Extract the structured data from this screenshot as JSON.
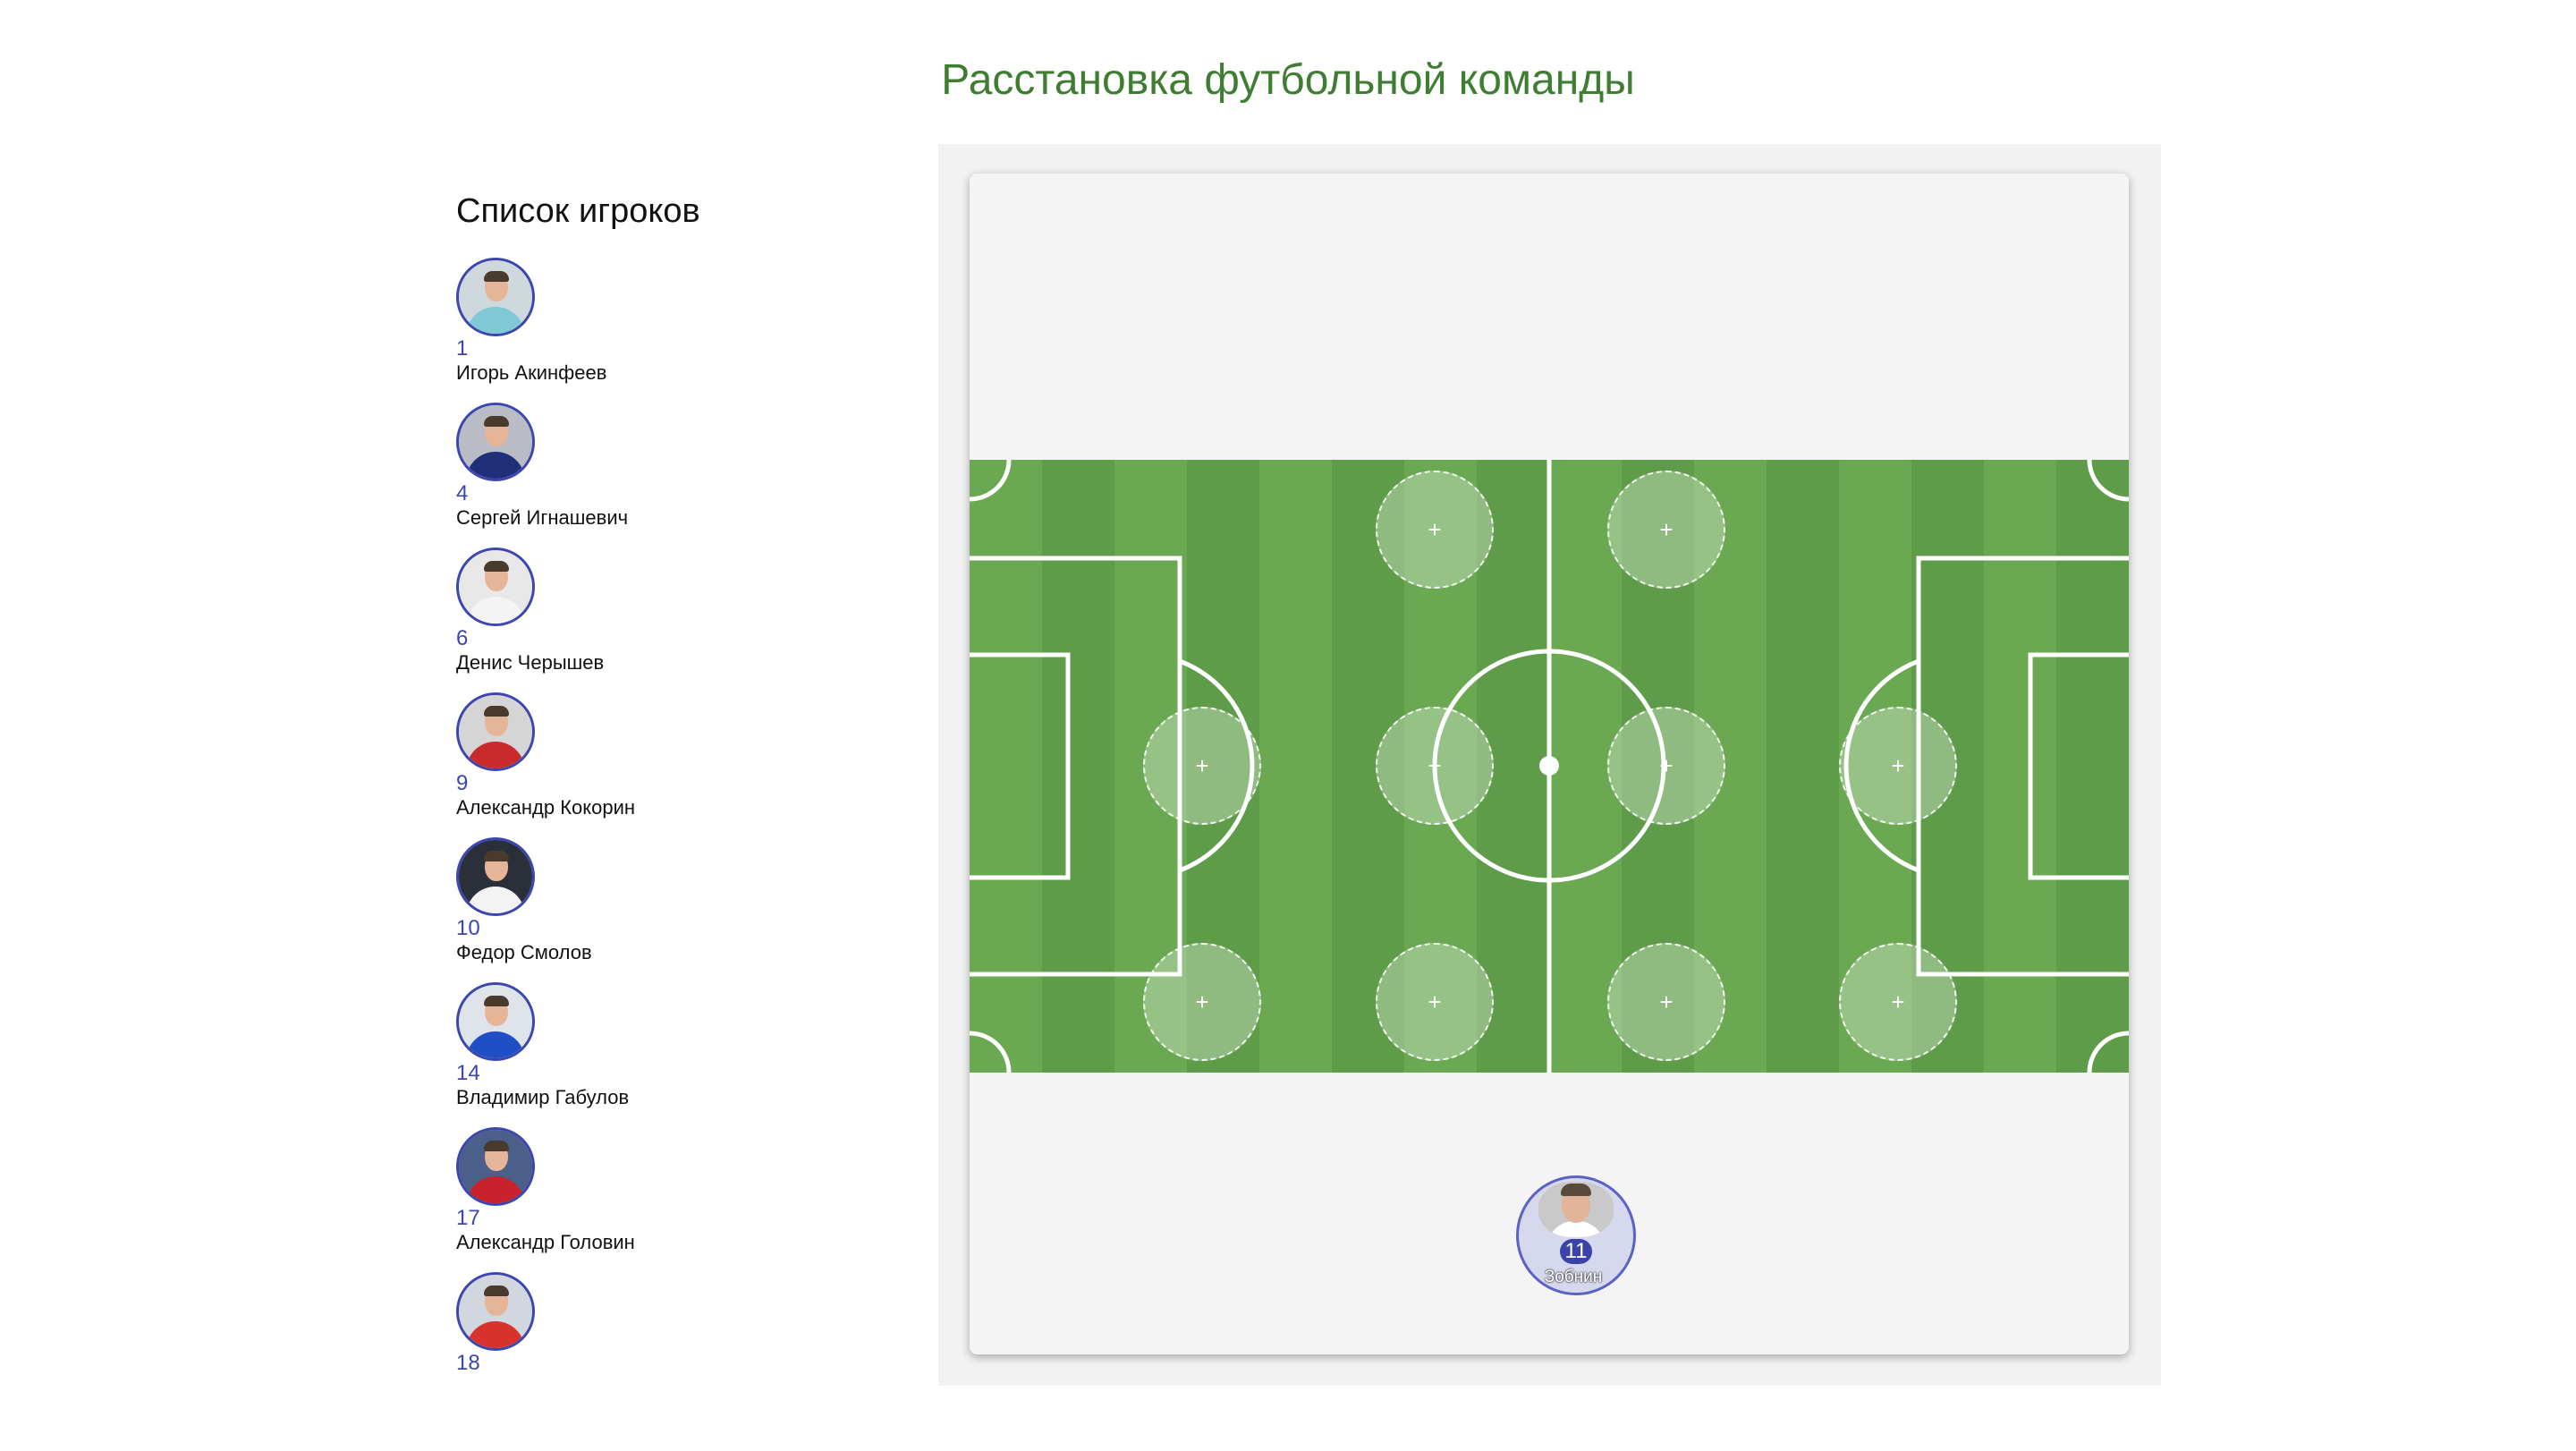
{
  "title": "Расстановка футбольной команды",
  "roster": {
    "heading": "Список игроков",
    "players": [
      {
        "number": "1",
        "name": "Игорь Акинфеев",
        "kit": "#7fc8d6",
        "bg": "#cfd8dc"
      },
      {
        "number": "4",
        "name": "Сергей Игнашевич",
        "kit": "#1f2f7a",
        "bg": "#b9bcc4"
      },
      {
        "number": "6",
        "name": "Денис Черышев",
        "kit": "#f4f4f4",
        "bg": "#e8e8e8"
      },
      {
        "number": "9",
        "name": "Александр Кокорин",
        "kit": "#c92a2a",
        "bg": "#d5d5d5"
      },
      {
        "number": "10",
        "name": "Федор Смолов",
        "kit": "#f3f3f3",
        "bg": "#2b2f3a"
      },
      {
        "number": "14",
        "name": "Владимир Габулов",
        "kit": "#1f4fc4",
        "bg": "#dfe3ea"
      },
      {
        "number": "17",
        "name": "Александр Головин",
        "kit": "#c8232c",
        "bg": "#4a5f8a"
      },
      {
        "number": "18",
        "name": "",
        "kit": "#d8322c",
        "bg": "#d2d6de"
      }
    ]
  },
  "field": {
    "slot_symbol": "+",
    "bench_player": {
      "number": "11",
      "name": "Зобнин"
    }
  },
  "colors": {
    "accent": "#3c46b0",
    "title": "#3f7d32",
    "pitch_light": "#6cab54",
    "pitch_dark": "#5e9a48"
  }
}
